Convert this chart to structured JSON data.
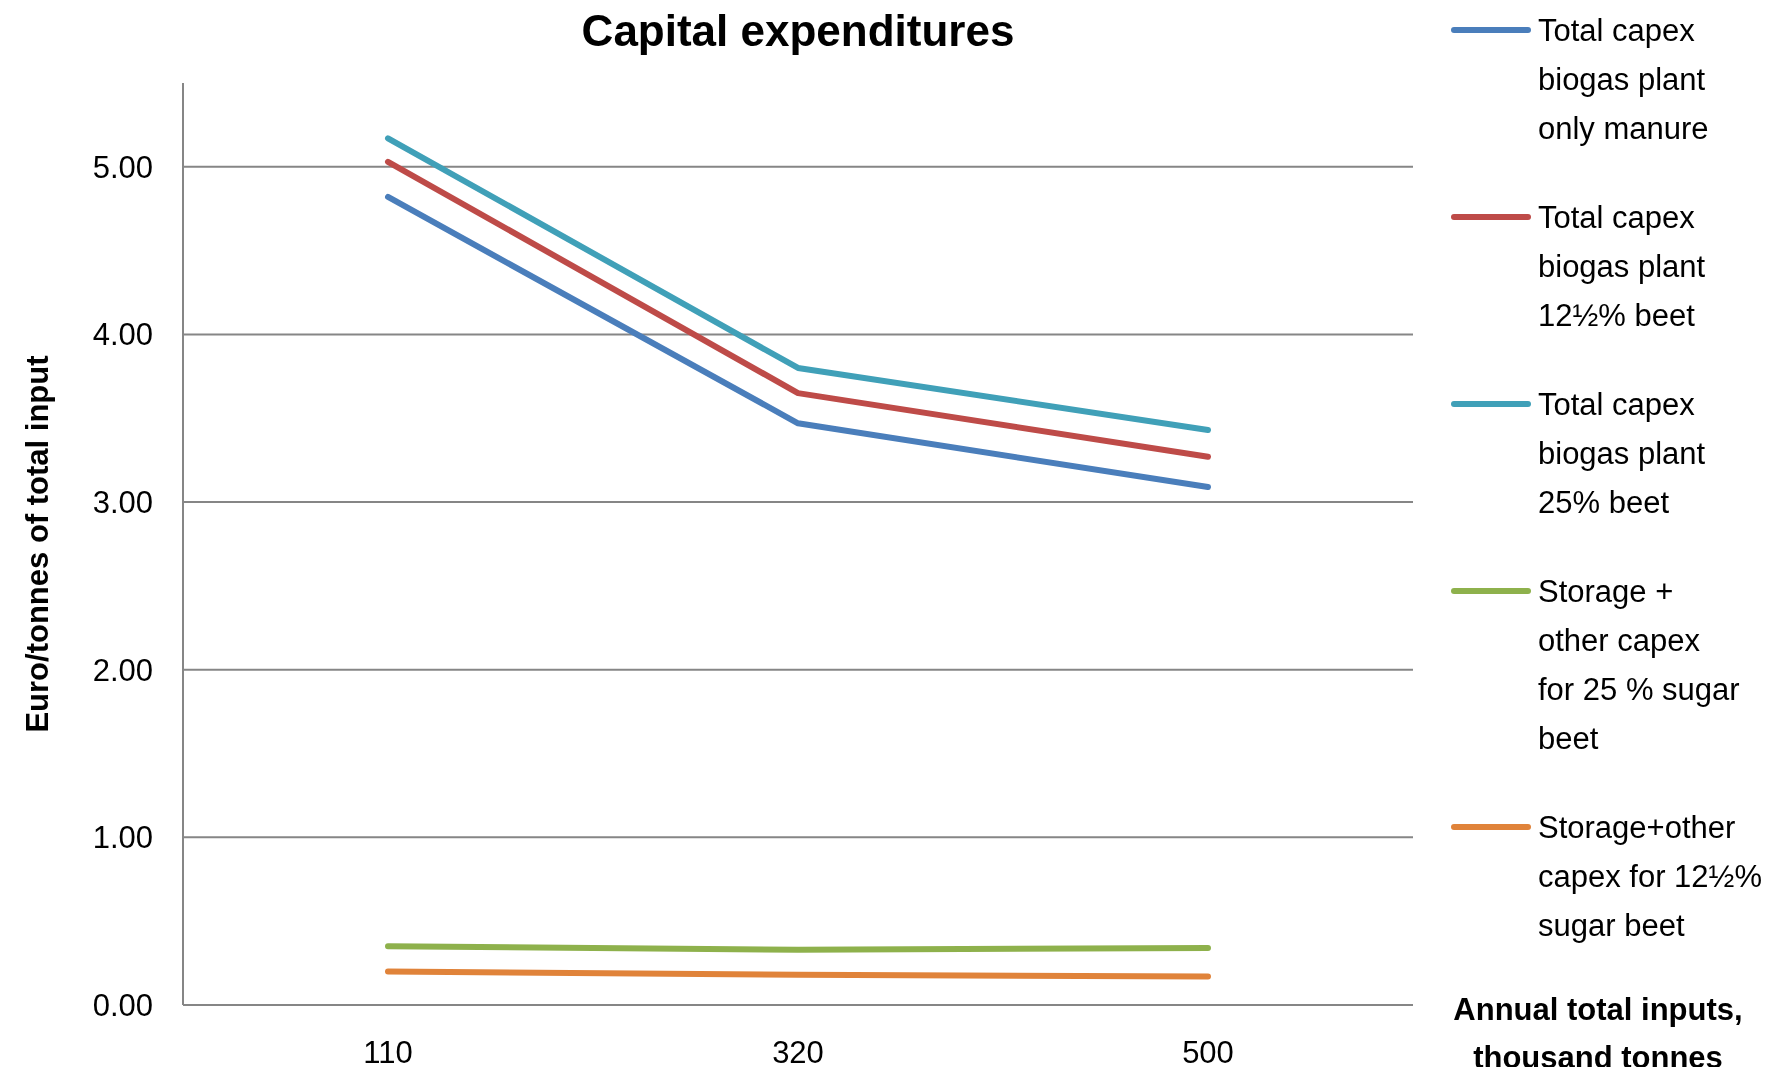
{
  "chart_data": {
    "type": "line",
    "title": "Capital expenditures",
    "xlabel": "Annual total inputs, thousand tonnes",
    "ylabel": "Euro/tonnes of total input",
    "categories": [
      "110",
      "320",
      "500"
    ],
    "series": [
      {
        "name": "Total capex biogas plant only manure",
        "color": "#4a7ebb",
        "values": [
          4.82,
          3.47,
          3.09
        ]
      },
      {
        "name": "Total capex biogas plant 12½% beet",
        "color": "#be4b48",
        "values": [
          5.03,
          3.65,
          3.27
        ]
      },
      {
        "name": "Total capex biogas plant 25% beet",
        "color": "#40a0b8",
        "values": [
          5.17,
          3.8,
          3.43
        ]
      },
      {
        "name": "Storage + other capex for 25 % sugar beet",
        "color": "#8eb14c",
        "values": [
          0.35,
          0.33,
          0.34
        ]
      },
      {
        "name": "Storage+other capex for 12½% sugar beet",
        "color": "#e0833a",
        "values": [
          0.2,
          0.18,
          0.17
        ]
      }
    ],
    "ylim": [
      0,
      5.5
    ],
    "yticks": [
      {
        "value": 0,
        "label": "0.00"
      },
      {
        "value": 1,
        "label": "1.00"
      },
      {
        "value": 2,
        "label": "2.00"
      },
      {
        "value": 3,
        "label": "3.00"
      },
      {
        "value": 4,
        "label": "4.00"
      },
      {
        "value": 5,
        "label": "5.00"
      }
    ],
    "grid": "y",
    "legend": "right",
    "marker": "none",
    "line_style": "solid"
  }
}
